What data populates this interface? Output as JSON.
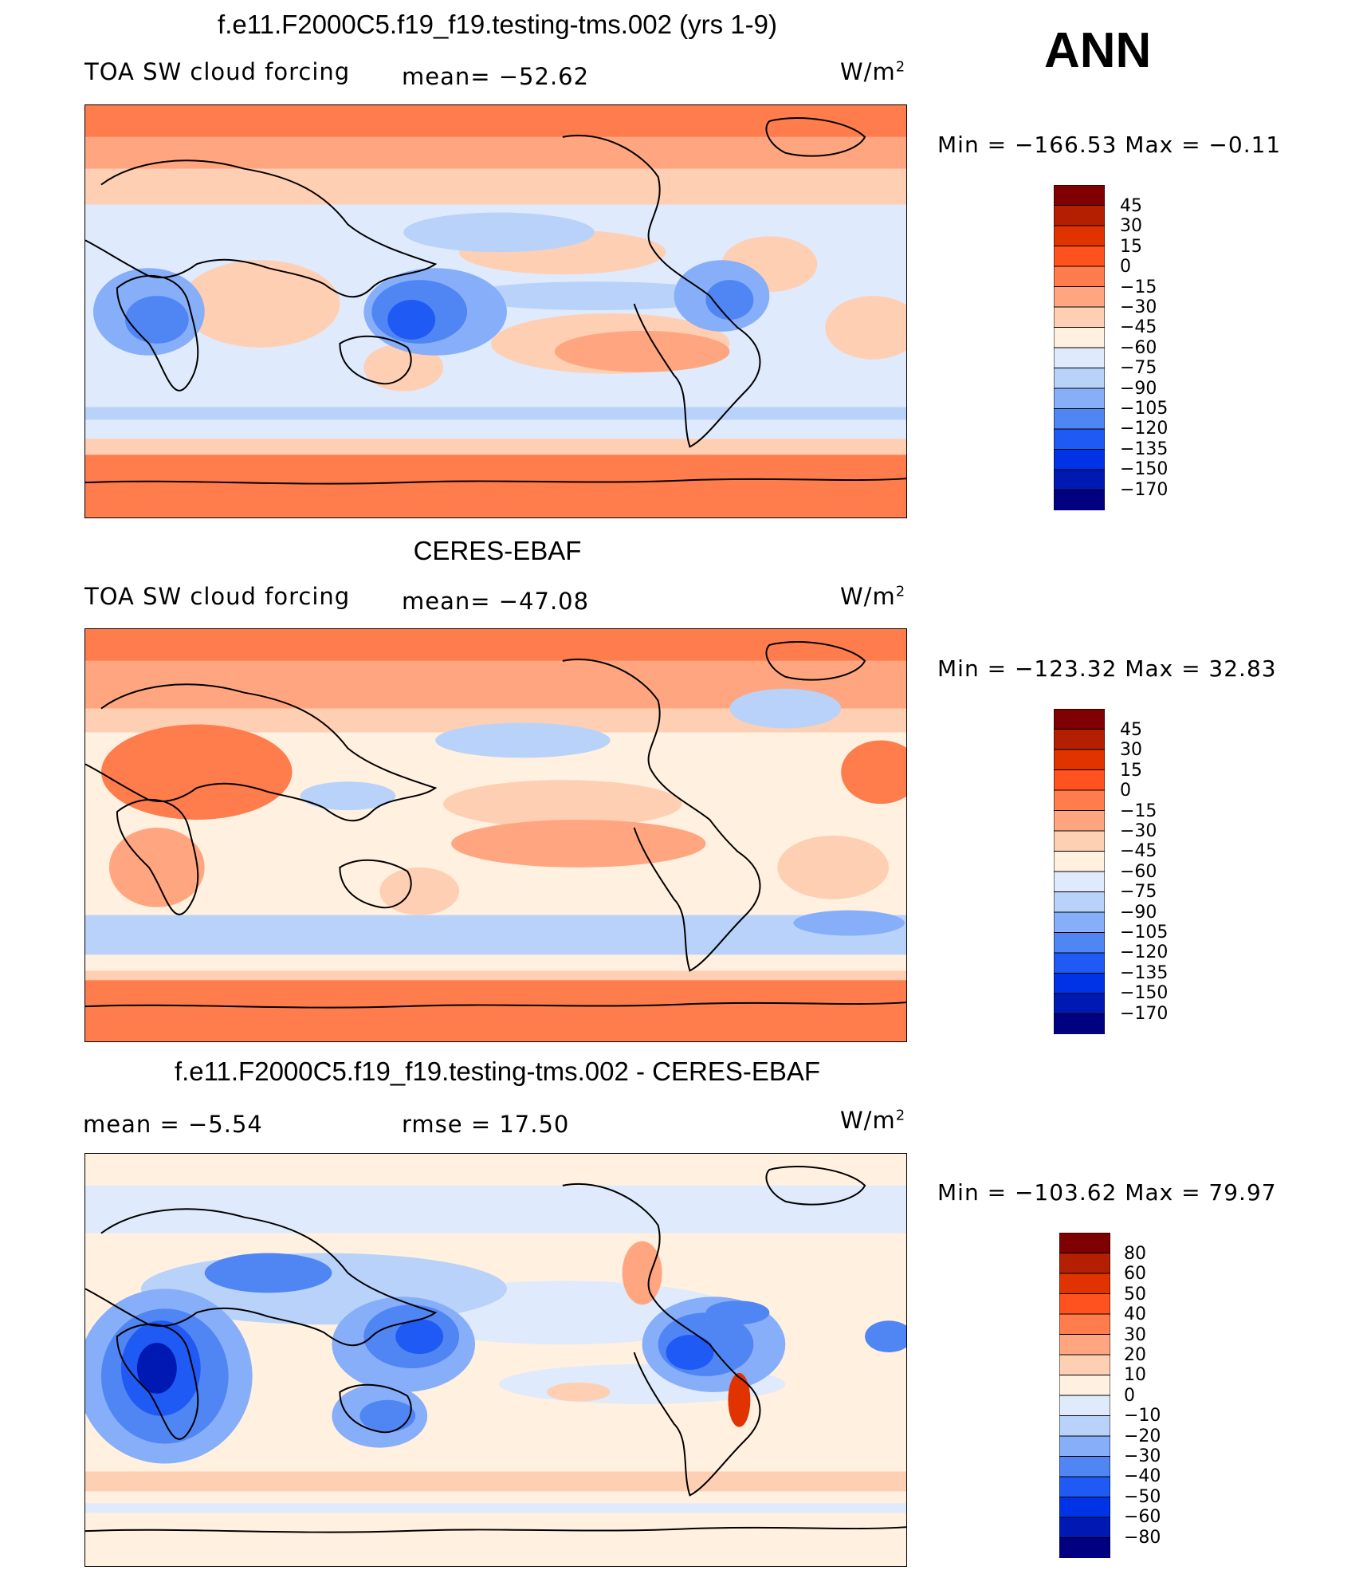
{
  "season": "ANN",
  "colors": {
    "abs": [
      "#000080",
      "#0019b3",
      "#0033e6",
      "#1f5af5",
      "#5085f4",
      "#87aef8",
      "#b9d2fa",
      "#dfeafc",
      "#fff0e0",
      "#ffcfb4",
      "#ffa680",
      "#ff7c4c",
      "#ff521f",
      "#e13300",
      "#b31f00",
      "#7f0000"
    ]
  },
  "panels": [
    {
      "title": "f.e11.F2000C5.f19_f19.testing-tms.002 (yrs 1-9)",
      "left_header": "TOA SW cloud forcing",
      "mid_header": "mean= −52.62",
      "units": "W/m",
      "units_sup": "2",
      "minmax": "Min  =  −166.53  Max  =    −0.11",
      "scheme": "abs"
    },
    {
      "title": "CERES-EBAF",
      "left_header": "TOA SW cloud forcing",
      "mid_header": "mean= −47.08",
      "units": "W/m",
      "units_sup": "2",
      "minmax": "Min  =  −123.32  Max  =    32.83",
      "scheme": "abs"
    },
    {
      "title": "f.e11.F2000C5.f19_f19.testing-tms.002 - CERES-EBAF",
      "left_header": "mean  =     −5.54",
      "mid_header": "rmse  =     17.50",
      "units": "W/m",
      "units_sup": "2",
      "minmax": "Min  =  −103.62  Max  =    79.97",
      "scheme": "diff"
    }
  ],
  "chart_data": [
    {
      "type": "heatmap",
      "title": "f.e11.F2000C5.f19_f19.testing-tms.002 (yrs 1-9)",
      "variable": "TOA SW cloud forcing",
      "units": "W/m2",
      "mean": -52.62,
      "min": -166.53,
      "max": -0.11,
      "colorbar_levels": [
        "45",
        "30",
        "15",
        "0",
        "−15",
        "−30",
        "−45",
        "−60",
        "−75",
        "−90",
        "−105",
        "−120",
        "−135",
        "−150",
        "−170"
      ]
    },
    {
      "type": "heatmap",
      "title": "CERES-EBAF",
      "variable": "TOA SW cloud forcing",
      "units": "W/m2",
      "mean": -47.08,
      "min": -123.32,
      "max": 32.83,
      "colorbar_levels": [
        "45",
        "30",
        "15",
        "0",
        "−15",
        "−30",
        "−45",
        "−60",
        "−75",
        "−90",
        "−105",
        "−120",
        "−135",
        "−150",
        "−170"
      ]
    },
    {
      "type": "heatmap",
      "title": "f.e11.F2000C5.f19_f19.testing-tms.002 - CERES-EBAF",
      "units": "W/m2",
      "mean": -5.54,
      "rmse": 17.5,
      "min": -103.62,
      "max": 79.97,
      "colorbar_levels": [
        "80",
        "60",
        "50",
        "40",
        "30",
        "20",
        "10",
        "0",
        "−10",
        "−20",
        "−30",
        "−40",
        "−50",
        "−60",
        "−80"
      ]
    }
  ]
}
